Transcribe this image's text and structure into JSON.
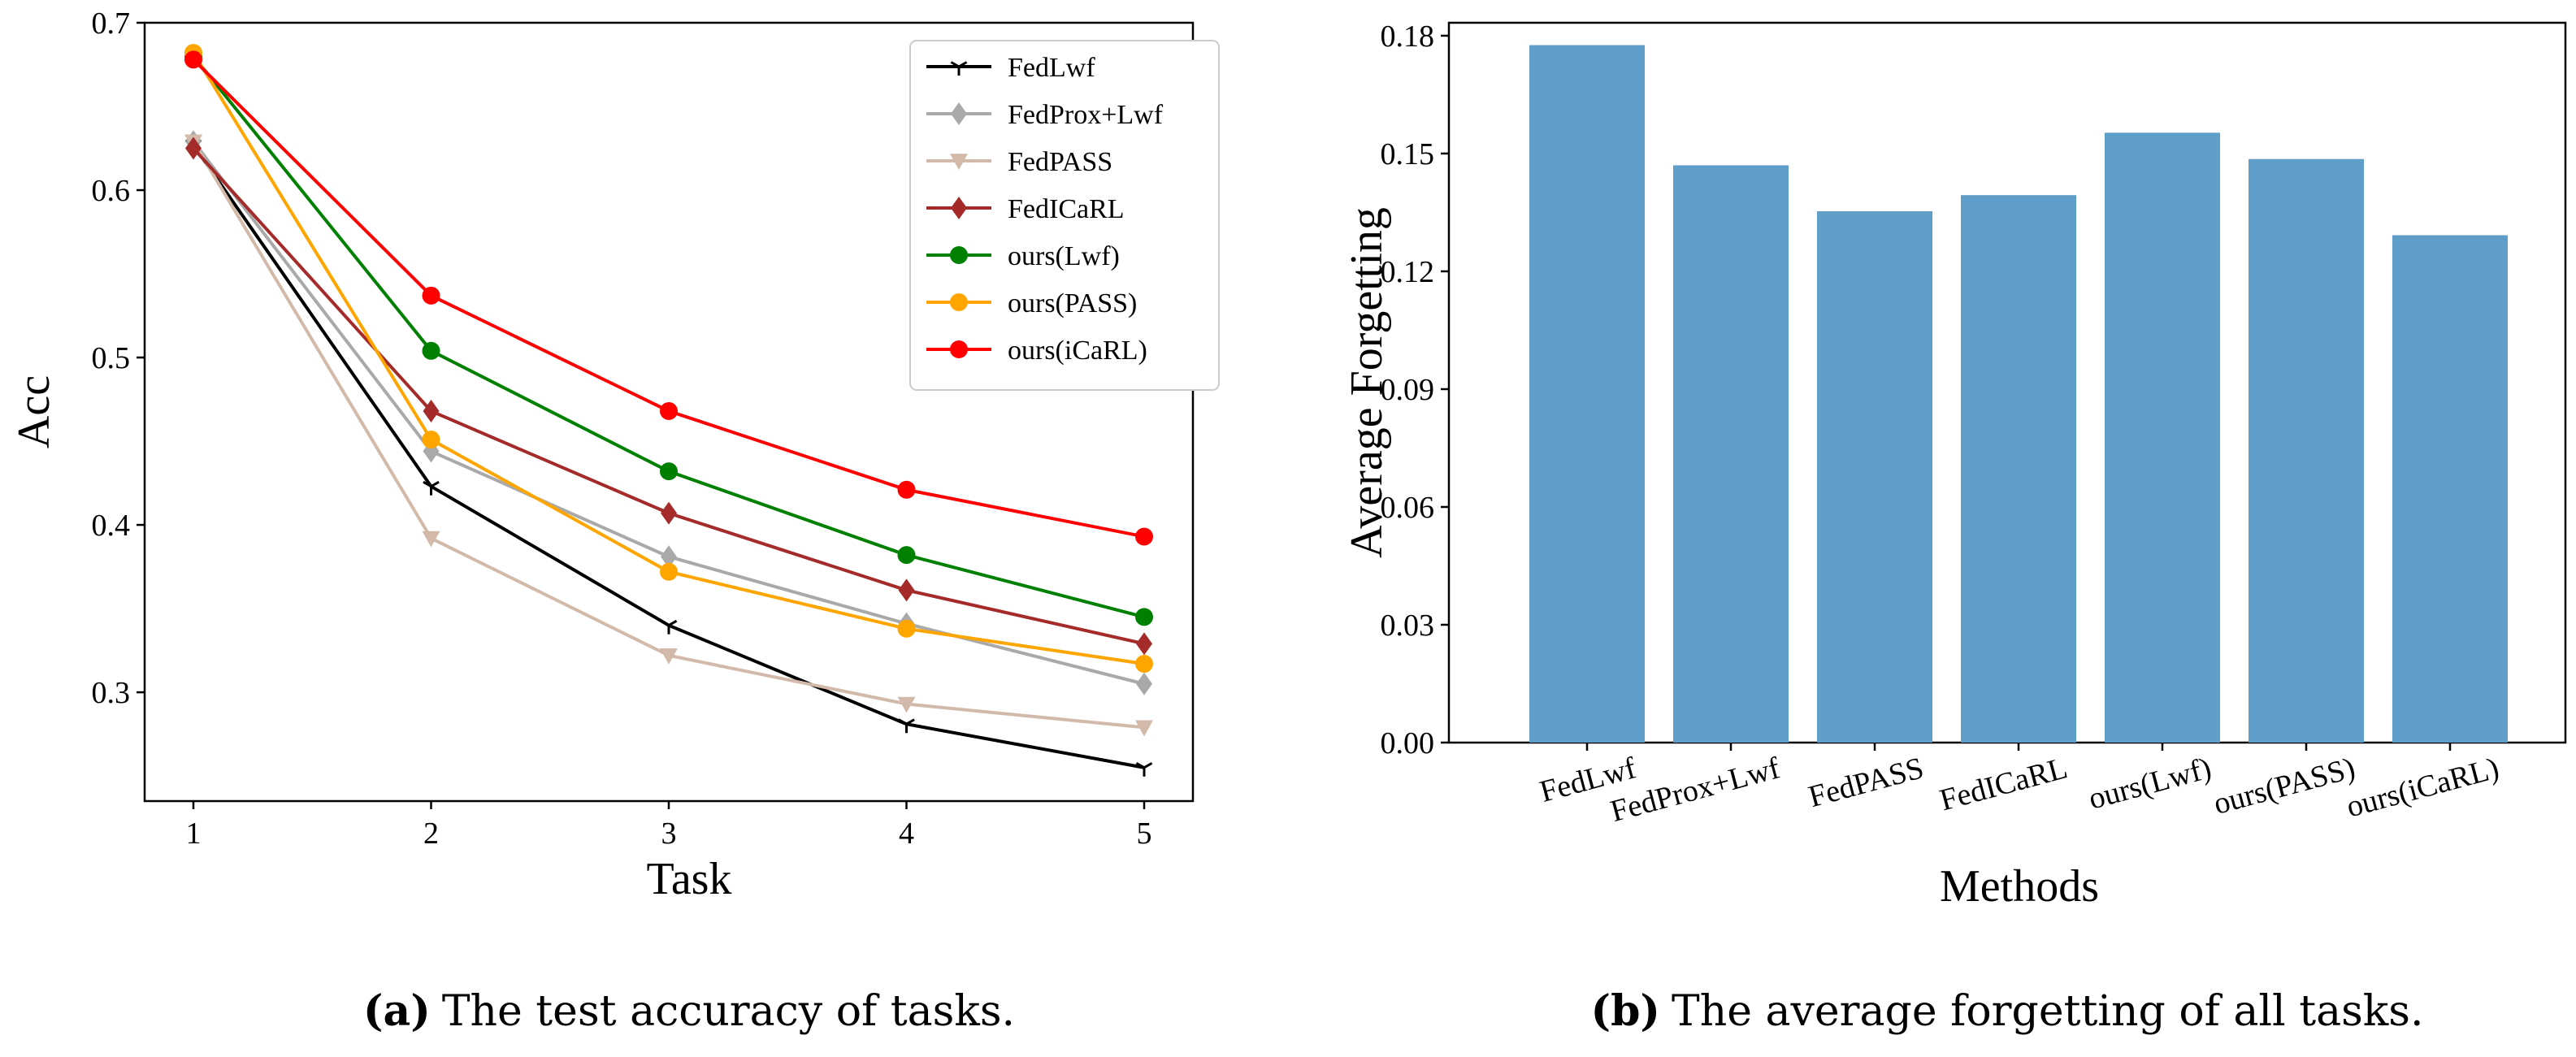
{
  "chart_data": [
    {
      "type": "line",
      "caption_label": "(a)",
      "caption_text": "The test accuracy of tasks.",
      "xlabel": "Task",
      "ylabel": "Acc",
      "x": [
        1,
        2,
        3,
        4,
        5
      ],
      "xticks": [
        "1",
        "2",
        "3",
        "4",
        "5"
      ],
      "yticks": [
        "0.3",
        "0.4",
        "0.5",
        "0.6",
        "0.7"
      ],
      "ylim": [
        0.235,
        0.7
      ],
      "legend_position": "top-right",
      "series": [
        {
          "name": "FedLwf",
          "color": "#000000",
          "marker": "tri_down",
          "values": [
            0.627,
            0.423,
            0.34,
            0.281,
            0.255
          ]
        },
        {
          "name": "FedProx+Lwf",
          "color": "#a9a9a9",
          "marker": "diamond",
          "values": [
            0.629,
            0.444,
            0.381,
            0.341,
            0.305
          ]
        },
        {
          "name": "FedPASS",
          "color": "#d2b9aa",
          "marker": "triangle-down",
          "values": [
            0.629,
            0.392,
            0.322,
            0.293,
            0.279
          ]
        },
        {
          "name": "FedICaRL",
          "color": "#a52a2a",
          "marker": "diamond",
          "values": [
            0.625,
            0.468,
            0.407,
            0.361,
            0.329
          ]
        },
        {
          "name": "ours(Lwf)",
          "color": "#008000",
          "marker": "circle",
          "values": [
            0.68,
            0.504,
            0.432,
            0.382,
            0.345
          ]
        },
        {
          "name": "ours(PASS)",
          "color": "#ffa500",
          "marker": "circle",
          "values": [
            0.682,
            0.451,
            0.372,
            0.338,
            0.317
          ]
        },
        {
          "name": "ours(iCaRL)",
          "color": "#ff0000",
          "marker": "circle",
          "values": [
            0.678,
            0.537,
            0.468,
            0.421,
            0.393
          ]
        }
      ]
    },
    {
      "type": "bar",
      "caption_label": "(b)",
      "caption_text": "The average forgetting of all tasks.",
      "xlabel": "Methods",
      "ylabel": "Average Forgetting",
      "categories": [
        "FedLwf",
        "FedProx+Lwf",
        "FedPASS",
        "FedICaRL",
        "ours(Lwf)",
        "ours(PASS)",
        "ours(iCaRL)"
      ],
      "values": [
        0.1776,
        0.147,
        0.1353,
        0.1394,
        0.1553,
        0.1486,
        0.1292
      ],
      "yticks": [
        "0.00",
        "0.03",
        "0.06",
        "0.09",
        "0.12",
        "0.15",
        "0.18"
      ],
      "ylim": [
        0,
        0.1833
      ],
      "bar_color": "#5f9ec8"
    }
  ]
}
